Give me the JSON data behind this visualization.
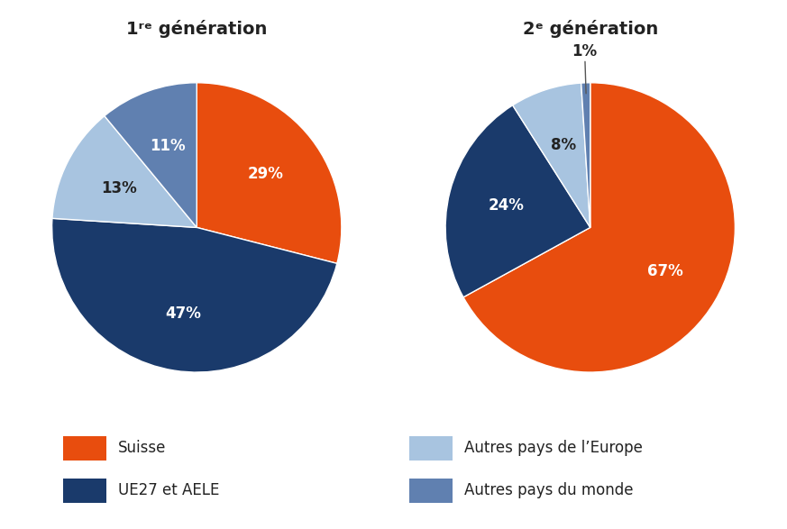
{
  "chart1_title": "1ʳᵉ génération",
  "chart2_title": "2ᵉ génération",
  "chart1_values": [
    29,
    47,
    13,
    11
  ],
  "chart2_values": [
    67,
    24,
    8,
    1
  ],
  "colors": [
    "#E84D0E",
    "#1A3A6B",
    "#A8C4E0",
    "#6080B0"
  ],
  "labels": [
    "Suisse",
    "UE27 et AELE",
    "Autres pays de l’Europe",
    "Autres pays du monde"
  ],
  "chart1_percentages": [
    "29%",
    "47%",
    "13%",
    "11%"
  ],
  "chart2_percentages": [
    "67%",
    "24%",
    "8%",
    "1%"
  ],
  "background_color": "#ffffff",
  "text_color": "#222222",
  "title_fontsize": 14,
  "label_fontsize": 12,
  "legend_fontsize": 12
}
